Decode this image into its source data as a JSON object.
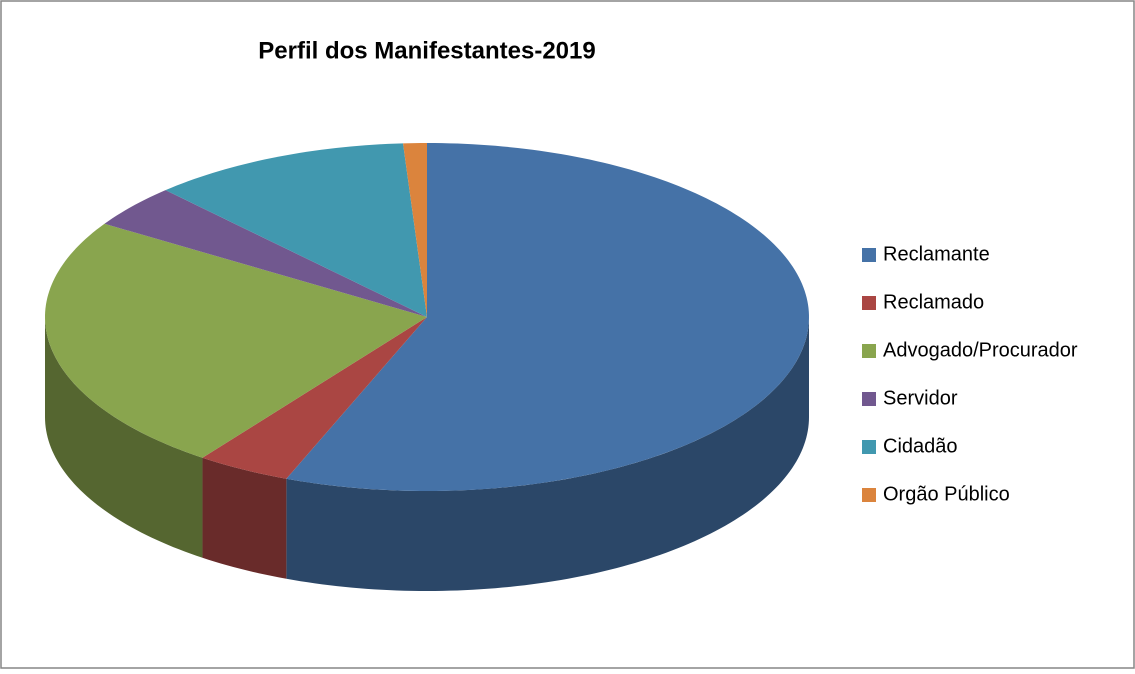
{
  "chart_data": {
    "type": "pie3d",
    "title": "Perfil dos Manifestantes-2019",
    "categories": [
      "Reclamante",
      "Reclamado",
      "Advogado/Procurador",
      "Servidor",
      "Cidadão",
      "Orgão Público"
    ],
    "values": [
      56,
      4,
      24,
      4,
      11,
      1
    ],
    "colors": [
      "#4572a7",
      "#aa4643",
      "#89a54e",
      "#71588f",
      "#4198af",
      "#db843d"
    ],
    "legend": "right"
  }
}
